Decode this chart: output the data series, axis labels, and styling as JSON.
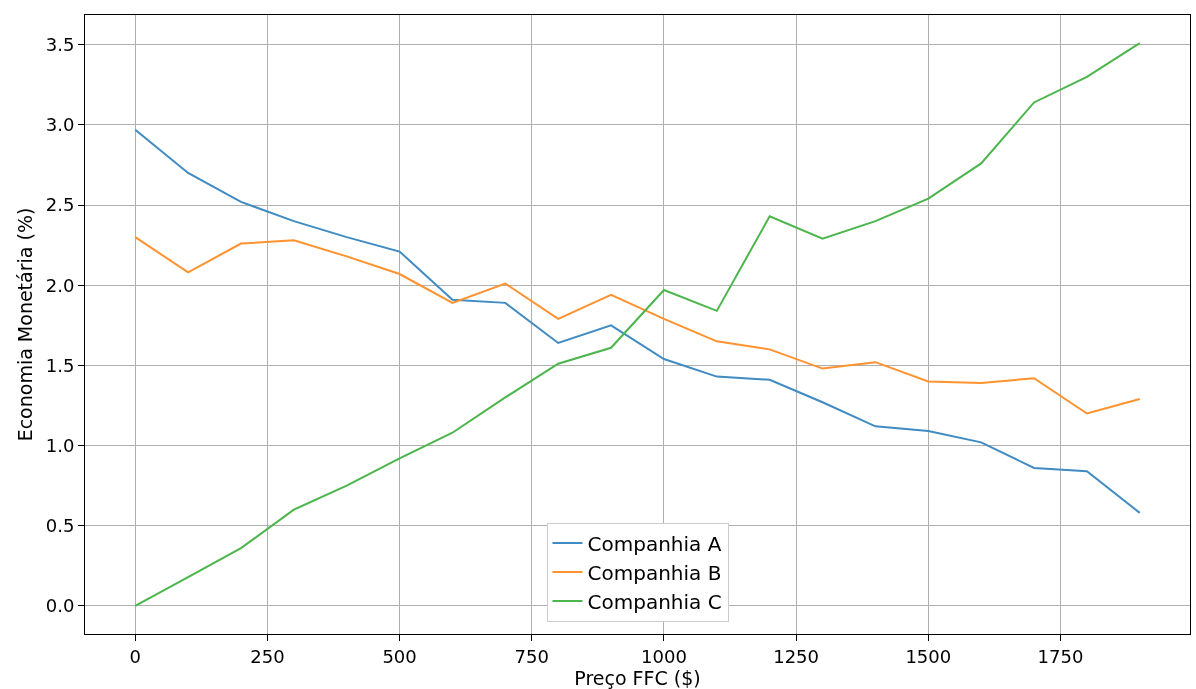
{
  "chart_data": {
    "type": "line",
    "xlabel": "Preço FFC ($)",
    "ylabel": "Economia Monetária (%)",
    "x": [
      0,
      100,
      200,
      300,
      400,
      500,
      600,
      700,
      800,
      900,
      1000,
      1100,
      1200,
      1300,
      1400,
      1500,
      1600,
      1700,
      1800,
      1900
    ],
    "series": [
      {
        "name": "Companhia A",
        "color": "#3f8bc2",
        "values": [
          2.97,
          2.7,
          2.52,
          2.4,
          2.3,
          2.21,
          1.91,
          1.89,
          1.64,
          1.75,
          1.54,
          1.43,
          1.41,
          1.27,
          1.12,
          1.09,
          1.02,
          0.86,
          0.84,
          0.58
        ]
      },
      {
        "name": "Companhia B",
        "color": "#ff922e",
        "values": [
          2.3,
          2.08,
          2.26,
          2.28,
          2.18,
          2.07,
          1.89,
          2.01,
          1.79,
          1.94,
          1.79,
          1.65,
          1.6,
          1.48,
          1.52,
          1.4,
          1.39,
          1.42,
          1.2,
          1.29
        ]
      },
      {
        "name": "Companhia C",
        "color": "#4cb54c",
        "values": [
          0.0,
          0.18,
          0.36,
          0.6,
          0.75,
          0.92,
          1.08,
          1.3,
          1.51,
          1.61,
          1.97,
          1.84,
          2.43,
          2.29,
          2.4,
          2.54,
          2.76,
          3.14,
          3.3,
          3.51
        ]
      }
    ],
    "xlim": [
      -95,
      1995
    ],
    "xticks": [
      0,
      250,
      500,
      750,
      1000,
      1250,
      1500,
      1750
    ],
    "ylim": [
      -0.1755,
      3.6855
    ],
    "yticks": [
      {
        "value": 0,
        "label": "0.0"
      },
      {
        "value": 0.5,
        "label": "0.5"
      },
      {
        "value": 1,
        "label": "1.0"
      },
      {
        "value": 1.5,
        "label": "1.5"
      },
      {
        "value": 2,
        "label": "2.0"
      },
      {
        "value": 2.5,
        "label": "2.5"
      },
      {
        "value": 3,
        "label": "3.0"
      },
      {
        "value": 3.5,
        "label": "3.5"
      }
    ],
    "grid": true,
    "legend": "bottom",
    "marker": "none",
    "line_style": "solid"
  }
}
